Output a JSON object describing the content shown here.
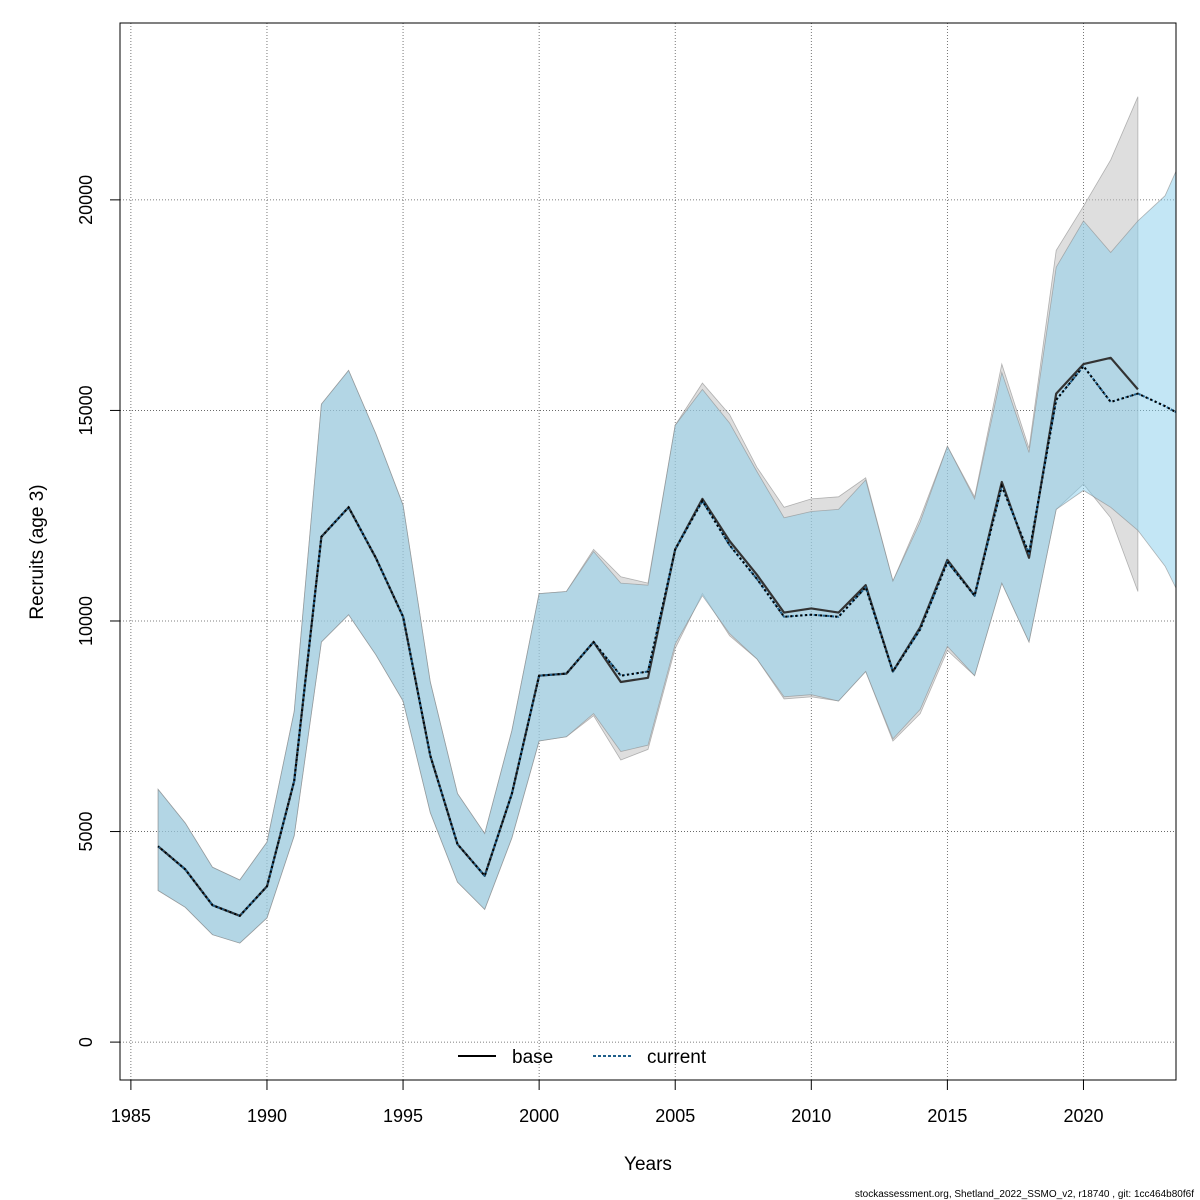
{
  "chart_data": {
    "type": "area",
    "xlabel": "Years",
    "ylabel": "Recruits (age 3)",
    "xlim": [
      1984.6,
      2023.4
    ],
    "ylim": [
      -900,
      24200
    ],
    "xticks": [
      1985,
      1990,
      1995,
      2000,
      2005,
      2010,
      2015,
      2020
    ],
    "yticks": [
      0,
      5000,
      10000,
      15000,
      20000
    ],
    "grid": true,
    "legend_position": "bottom-center",
    "footnote": "stockassessment.org, Shetland_2022_SSMO_v2, r18740 , git: 1cc464b80f6f",
    "series": [
      {
        "name": "base",
        "style": "solid",
        "line_color": "#333333",
        "band_color": "#bebebe",
        "x": [
          1986,
          1987,
          1988,
          1989,
          1990,
          1991,
          1992,
          1993,
          1994,
          1995,
          1996,
          1997,
          1998,
          1999,
          2000,
          2001,
          2002,
          2003,
          2004,
          2005,
          2006,
          2007,
          2008,
          2009,
          2010,
          2011,
          2012,
          2013,
          2014,
          2015,
          2016,
          2017,
          2018,
          2019,
          2020,
          2021,
          2022
        ],
        "y": [
          4650,
          4100,
          3250,
          3000,
          3700,
          6200,
          12000,
          12700,
          11500,
          10100,
          6800,
          4700,
          3950,
          5900,
          8700,
          8750,
          9500,
          8550,
          8650,
          11700,
          12900,
          11900,
          11100,
          10200,
          10300,
          10200,
          10850,
          8800,
          9850,
          11450,
          10600,
          13300,
          11500,
          15400,
          16100,
          16250,
          15500
        ],
        "lower": [
          3600,
          3200,
          2550,
          2350,
          2950,
          4900,
          9500,
          10150,
          9200,
          8100,
          5450,
          3800,
          3150,
          4850,
          7150,
          7250,
          7750,
          6700,
          6950,
          9350,
          10650,
          9650,
          9100,
          8150,
          8200,
          8100,
          8800,
          7150,
          7800,
          9300,
          8700,
          10900,
          9500,
          12650,
          13250,
          12450,
          10700
        ],
        "upper": [
          6000,
          5200,
          4150,
          3850,
          4750,
          7850,
          15150,
          15950,
          14450,
          12750,
          8550,
          5900,
          4950,
          7400,
          10650,
          10700,
          11700,
          11050,
          10900,
          14650,
          15650,
          14900,
          13650,
          12700,
          12900,
          12950,
          13400,
          10950,
          12450,
          14150,
          12950,
          16100,
          14100,
          18800,
          19850,
          20950,
          22450
        ]
      },
      {
        "name": "current",
        "style": "dotted",
        "line_color": "#1f5f8a",
        "band_color": "#87ceeb",
        "x": [
          1986,
          1987,
          1988,
          1989,
          1990,
          1991,
          1992,
          1993,
          1994,
          1995,
          1996,
          1997,
          1998,
          1999,
          2000,
          2001,
          2002,
          2003,
          2004,
          2005,
          2006,
          2007,
          2008,
          2009,
          2010,
          2011,
          2012,
          2013,
          2014,
          2015,
          2016,
          2017,
          2018,
          2019,
          2020,
          2021,
          2022,
          2023,
          2024
        ],
        "y": [
          4650,
          4100,
          3250,
          3000,
          3700,
          6200,
          12000,
          12700,
          11500,
          10100,
          6800,
          4700,
          3950,
          5900,
          8700,
          8750,
          9500,
          8700,
          8800,
          11700,
          12850,
          11800,
          11000,
          10100,
          10150,
          10100,
          10800,
          8800,
          9800,
          11400,
          10600,
          13200,
          11600,
          15250,
          16050,
          15200,
          15400,
          15100,
          14750
        ],
        "lower": [
          3600,
          3200,
          2550,
          2350,
          2950,
          4900,
          9500,
          10150,
          9200,
          8100,
          5450,
          3800,
          3150,
          4850,
          7150,
          7250,
          7800,
          6900,
          7050,
          9450,
          10600,
          9700,
          9100,
          8200,
          8250,
          8100,
          8800,
          7200,
          7900,
          9400,
          8700,
          10900,
          9500,
          12650,
          13100,
          12700,
          12150,
          11300,
          10000
        ],
        "upper": [
          6000,
          5200,
          4150,
          3850,
          4750,
          7850,
          15150,
          15950,
          14450,
          12750,
          8550,
          5900,
          4950,
          7400,
          10650,
          10700,
          11650,
          10900,
          10850,
          14650,
          15500,
          14700,
          13550,
          12450,
          12600,
          12650,
          13350,
          10950,
          12350,
          14150,
          12900,
          15900,
          14000,
          18400,
          19500,
          18750,
          19500,
          20100,
          21550
        ]
      }
    ]
  }
}
